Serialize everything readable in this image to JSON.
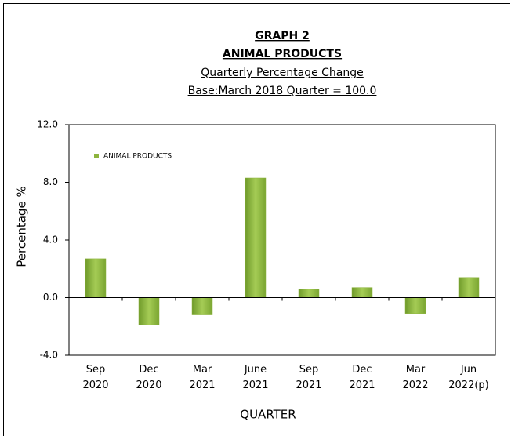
{
  "chart_data": {
    "type": "bar",
    "title": "GRAPH 2",
    "subtitle": "ANIMAL PRODUCTS",
    "subtitle2": "Quarterly Percentage Change",
    "subtitle3": "Base:March 2018 Quarter = 100.0",
    "x_label": "QUARTER",
    "y_label": "Percentage %",
    "categories": [
      "Sep 2020",
      "Dec 2020",
      "Mar 2021",
      "June 2021",
      "Sep 2021",
      "Dec 2021",
      "Mar 2022",
      "Jun 2022(p)"
    ],
    "series": [
      {
        "name": "ANIMAL PRODUCTS",
        "color": "#8db43e",
        "values": [
          2.7,
          -1.9,
          -1.2,
          8.3,
          0.6,
          0.7,
          -1.1,
          1.4
        ]
      }
    ],
    "ylim": [
      -4,
      12
    ],
    "yticks": [
      {
        "value": -4,
        "label": "-4.0"
      },
      {
        "value": 0,
        "label": "0.0"
      },
      {
        "value": 4,
        "label": "4.0"
      },
      {
        "value": 8,
        "label": "8.0"
      },
      {
        "value": 12,
        "label": "12.0"
      }
    ],
    "legend": "top-left"
  }
}
